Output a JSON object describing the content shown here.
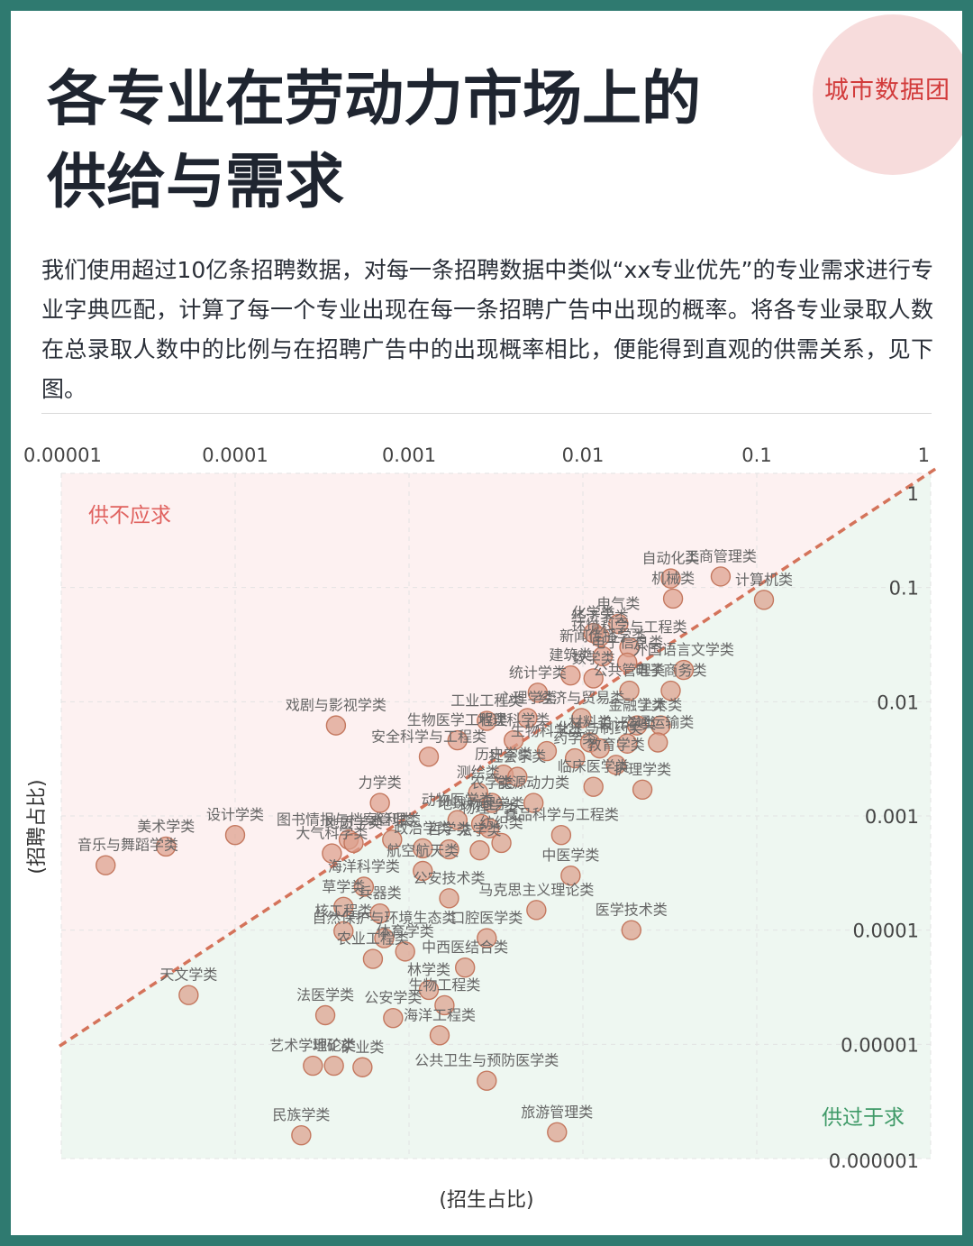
{
  "brand": "城市数据团",
  "title_lines": [
    "各专业在劳动力市场上的",
    "供给与需求"
  ],
  "description": "我们使用超过10亿条招聘数据，对每一条招聘数据中类似“xx专业优先”的专业需求进行专业字典匹配，计算了每一个专业出现在每一条招聘广告中出现的概率。将各专业录取人数在总录取人数中的比例与在招聘广告中的出现概率相比，便能得到直观的供需关系，见下图。",
  "chart_data": {
    "type": "scatter",
    "xlabel": "(招生占比)",
    "ylabel": "(招聘占比)",
    "x_scale": "log",
    "y_scale": "log",
    "xlim": [
      1e-05,
      1
    ],
    "ylim": [
      1e-06,
      1
    ],
    "x_ticks": [
      "0.00001",
      "0.0001",
      "0.001",
      "0.01",
      "0.1",
      "1"
    ],
    "y_ticks": [
      "1",
      "0.1",
      "0.01",
      "0.001",
      "0.0001",
      "0.00001",
      "0.000001"
    ],
    "reference_line": "y = x",
    "region_labels": {
      "upper_left": "供不应求",
      "lower_right": "供过于求"
    },
    "colors": {
      "upper_region": "#fdf1f1",
      "lower_region": "#eef7f1",
      "point_fill": "#dca08c",
      "point_stroke": "#c4785f",
      "reference_line": "#d4735a",
      "upper_text": "#e0615e",
      "lower_text": "#3f9a68"
    },
    "points": [
      {
        "name": "自动化类",
        "x": 0.032,
        "y": 0.12
      },
      {
        "name": "工商管理类",
        "x": 0.062,
        "y": 0.125
      },
      {
        "name": "机械类",
        "x": 0.033,
        "y": 0.08
      },
      {
        "name": "计算机类",
        "x": 0.11,
        "y": 0.078
      },
      {
        "name": "电气类",
        "x": 0.016,
        "y": 0.048
      },
      {
        "name": "化学类",
        "x": 0.0115,
        "y": 0.04
      },
      {
        "name": "经济学类",
        "x": 0.0125,
        "y": 0.037
      },
      {
        "name": "环境科学与工程类",
        "x": 0.0185,
        "y": 0.03
      },
      {
        "name": "新闻传播学类",
        "x": 0.013,
        "y": 0.025
      },
      {
        "name": "电子信息类",
        "x": 0.018,
        "y": 0.022
      },
      {
        "name": "外国语言文学类",
        "x": 0.038,
        "y": 0.019
      },
      {
        "name": "建筑类",
        "x": 0.0085,
        "y": 0.017
      },
      {
        "name": "数学类",
        "x": 0.0115,
        "y": 0.016
      },
      {
        "name": "统计学类",
        "x": 0.0055,
        "y": 0.012
      },
      {
        "name": "公共管理类",
        "x": 0.0185,
        "y": 0.0125
      },
      {
        "name": "电子商务类",
        "x": 0.032,
        "y": 0.0125
      },
      {
        "name": "戏剧与影视学类",
        "x": 0.00038,
        "y": 0.0062
      },
      {
        "name": "工业工程类",
        "x": 0.0028,
        "y": 0.0068
      },
      {
        "name": "心理学类",
        "x": 0.0048,
        "y": 0.0072
      },
      {
        "name": "经济与贸易类",
        "x": 0.0098,
        "y": 0.0072
      },
      {
        "name": "金融学类",
        "x": 0.0205,
        "y": 0.0062
      },
      {
        "name": "土木类",
        "x": 0.028,
        "y": 0.0062
      },
      {
        "name": "生物医学工程类",
        "x": 0.0019,
        "y": 0.0046
      },
      {
        "name": "地理科学类",
        "x": 0.004,
        "y": 0.0046
      },
      {
        "name": "材料类",
        "x": 0.011,
        "y": 0.0044
      },
      {
        "name": "设计学类",
        "x": 0.018,
        "y": 0.0043
      },
      {
        "name": "交通运输类",
        "x": 0.027,
        "y": 0.0044
      },
      {
        "name": "化工与制药类",
        "x": 0.0125,
        "y": 0.0039
      },
      {
        "name": "生物科学类",
        "x": 0.0062,
        "y": 0.0037
      },
      {
        "name": "药学类",
        "x": 0.009,
        "y": 0.0032
      },
      {
        "name": "教育学类",
        "x": 0.0155,
        "y": 0.0028
      },
      {
        "name": "安全科学与工程类",
        "x": 0.0013,
        "y": 0.0033
      },
      {
        "name": "历史学类",
        "x": 0.0035,
        "y": 0.0023
      },
      {
        "name": "社会学类",
        "x": 0.0042,
        "y": 0.0022
      },
      {
        "name": "力学类",
        "x": 0.00068,
        "y": 0.0013
      },
      {
        "name": "测绘类",
        "x": 0.0025,
        "y": 0.0016
      },
      {
        "name": "农学类",
        "x": 0.003,
        "y": 0.0013
      },
      {
        "name": "能源动力类",
        "x": 0.0052,
        "y": 0.0013
      },
      {
        "name": "临床医学类",
        "x": 0.0115,
        "y": 0.0018
      },
      {
        "name": "护理学类",
        "x": 0.022,
        "y": 0.0017
      },
      {
        "name": "设计学类",
        "x": 0.0001,
        "y": 0.00068
      },
      {
        "name": "美术学类",
        "x": 4e-05,
        "y": 0.00054
      },
      {
        "name": "音乐与舞蹈学类",
        "x": 1.8e-05,
        "y": 0.00037
      },
      {
        "name": "图书情报与档案管理类",
        "x": 0.00045,
        "y": 0.00062
      },
      {
        "name": "地质学类",
        "x": 0.00048,
        "y": 0.00058
      },
      {
        "name": "水利类",
        "x": 0.0008,
        "y": 0.00062
      },
      {
        "name": "动物医学类",
        "x": 0.0019,
        "y": 0.00092
      },
      {
        "name": "地球物理学类",
        "x": 0.0026,
        "y": 0.00085
      },
      {
        "name": "物理学类",
        "x": 0.0029,
        "y": 0.00078
      },
      {
        "name": "政治学类",
        "x": 0.0012,
        "y": 0.00052
      },
      {
        "name": "哲学类",
        "x": 0.0017,
        "y": 0.00051
      },
      {
        "name": "法学类",
        "x": 0.00255,
        "y": 0.0005
      },
      {
        "name": "纺织类",
        "x": 0.0034,
        "y": 0.00058
      },
      {
        "name": "食品科学与工程类",
        "x": 0.0075,
        "y": 0.00068
      },
      {
        "name": "大气科学类",
        "x": 0.00036,
        "y": 0.00047
      },
      {
        "name": "航空航天类",
        "x": 0.0012,
        "y": 0.00033
      },
      {
        "name": "中医学类",
        "x": 0.0085,
        "y": 0.0003
      },
      {
        "name": "海洋科学类",
        "x": 0.00055,
        "y": 0.00024
      },
      {
        "name": "公安技术类",
        "x": 0.0017,
        "y": 0.00019
      },
      {
        "name": "草学类",
        "x": 0.00042,
        "y": 0.00016
      },
      {
        "name": "兵器类",
        "x": 0.00068,
        "y": 0.00014
      },
      {
        "name": "马克思主义理论类",
        "x": 0.0054,
        "y": 0.00015
      },
      {
        "name": "医学技术类",
        "x": 0.019,
        "y": 0.0001
      },
      {
        "name": "自然保护与环境生态类",
        "x": 0.00072,
        "y": 8.5e-05
      },
      {
        "name": "核工程类",
        "x": 0.00042,
        "y": 9.8e-05
      },
      {
        "name": "口腔医学类",
        "x": 0.0028,
        "y": 8.5e-05
      },
      {
        "name": "天文学类",
        "x": 5.4e-05,
        "y": 2.7e-05
      },
      {
        "name": "中西医结合类",
        "x": 0.0021,
        "y": 4.7e-05
      },
      {
        "name": "农业工程类",
        "x": 0.00062,
        "y": 5.6e-05
      },
      {
        "name": "体育学类",
        "x": 0.00095,
        "y": 6.5e-05
      },
      {
        "name": "林学类",
        "x": 0.0013,
        "y": 3e-05
      },
      {
        "name": "法医学类",
        "x": 0.00033,
        "y": 1.8e-05
      },
      {
        "name": "公安学类",
        "x": 0.00081,
        "y": 1.7e-05
      },
      {
        "name": "生物工程类",
        "x": 0.0016,
        "y": 2.2e-05
      },
      {
        "name": "海洋工程类",
        "x": 0.0015,
        "y": 1.2e-05
      },
      {
        "name": "艺术学理论类",
        "x": 0.00028,
        "y": 6.5e-06
      },
      {
        "name": "地矿类",
        "x": 0.00037,
        "y": 6.5e-06
      },
      {
        "name": "矿业类",
        "x": 0.00054,
        "y": 6.3e-06
      },
      {
        "name": "公共卫生与预防医学类",
        "x": 0.0028,
        "y": 4.8e-06
      },
      {
        "name": "民族学类",
        "x": 0.00024,
        "y": 1.6e-06
      },
      {
        "name": "旅游管理类",
        "x": 0.0071,
        "y": 1.7e-06
      }
    ]
  }
}
